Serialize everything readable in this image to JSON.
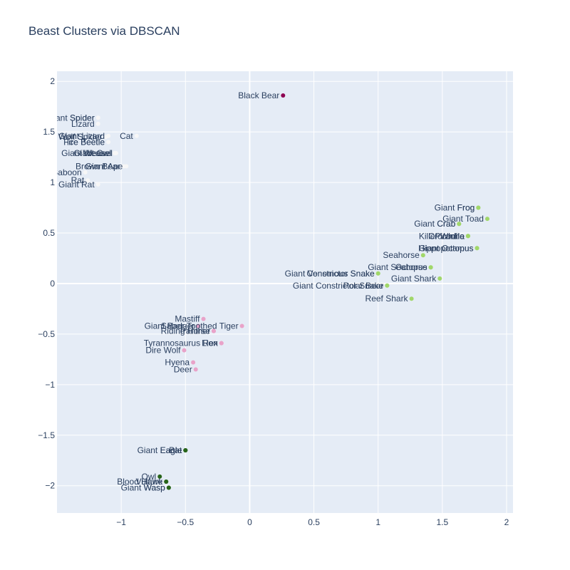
{
  "chart_data": {
    "type": "scatter",
    "title": "Beast Clusters via DBSCAN",
    "xlabel": "",
    "ylabel": "",
    "xlim": [
      -1.5,
      2.05
    ],
    "ylim": [
      -2.27,
      2.1
    ],
    "xticks": [
      -1,
      -0.5,
      0,
      0.5,
      1,
      1.5,
      2
    ],
    "xtick_labels": [
      "−1",
      "−0.5",
      "0",
      "0.5",
      "1",
      "1.5",
      "2"
    ],
    "yticks": [
      -2,
      -1.5,
      -1,
      -0.5,
      0,
      0.5,
      1,
      1.5,
      2
    ],
    "ytick_labels": [
      "−2",
      "−1.5",
      "−1",
      "−0.5",
      "0",
      "0.5",
      "1",
      "1.5",
      "2"
    ],
    "grid": true,
    "legend": "none",
    "background": "#e5ecf6",
    "cluster_colors": {
      "black_bear": "#8e0152",
      "white": "#f7f7f7",
      "green": "#a1d76a",
      "pink": "#e9a3c9",
      "darkgreen": "#276419"
    },
    "points": [
      {
        "label": "Black Bear",
        "x": 0.26,
        "y": 1.86,
        "cluster": "black_bear"
      },
      {
        "label": "Giant Spider",
        "x": -1.18,
        "y": 1.64,
        "cluster": "white"
      },
      {
        "label": "Spider",
        "x": -1.18,
        "y": 1.64,
        "cluster": "white"
      },
      {
        "label": "Lizard",
        "x": -1.18,
        "y": 1.58,
        "cluster": "white"
      },
      {
        "label": "Cat",
        "x": -0.88,
        "y": 1.46,
        "cluster": "white"
      },
      {
        "label": "Giant Lizard",
        "x": -1.1,
        "y": 1.46,
        "cluster": "white"
      },
      {
        "label": "Wolf Spider",
        "x": -1.12,
        "y": 1.45,
        "cluster": "white"
      },
      {
        "label": "Ice Beetle",
        "x": -1.1,
        "y": 1.4,
        "cluster": "white"
      },
      {
        "label": "Fire Beetle",
        "x": -1.1,
        "y": 1.4,
        "cluster": "white"
      },
      {
        "label": "Giant Weasel",
        "x": -1.04,
        "y": 1.29,
        "cluster": "white"
      },
      {
        "label": "Weasel",
        "x": -1.05,
        "y": 1.29,
        "cluster": "white"
      },
      {
        "label": "Giant Owl",
        "x": -1.05,
        "y": 1.29,
        "cluster": "white"
      },
      {
        "label": "Giant Ape",
        "x": -0.96,
        "y": 1.16,
        "cluster": "white"
      },
      {
        "label": "Brown Bear",
        "x": -0.98,
        "y": 1.16,
        "cluster": "white"
      },
      {
        "label": "Baboon",
        "x": -1.28,
        "y": 1.1,
        "cluster": "white"
      },
      {
        "label": "Rat",
        "x": -1.26,
        "y": 1.02,
        "cluster": "white"
      },
      {
        "label": "Giant Rat",
        "x": -1.18,
        "y": 0.98,
        "cluster": "white"
      },
      {
        "label": "Giant Frog",
        "x": 1.78,
        "y": 0.75,
        "cluster": "green"
      },
      {
        "label": "Frog",
        "x": 1.78,
        "y": 0.75,
        "cluster": "green"
      },
      {
        "label": "Giant Toad",
        "x": 1.85,
        "y": 0.64,
        "cluster": "green"
      },
      {
        "label": "Giant Crab",
        "x": 1.63,
        "y": 0.59,
        "cluster": "green"
      },
      {
        "label": "Crab",
        "x": 1.63,
        "y": 0.59,
        "cluster": "green"
      },
      {
        "label": "Killer Whale",
        "x": 1.7,
        "y": 0.47,
        "cluster": "green"
      },
      {
        "label": "Piranha",
        "x": 1.7,
        "y": 0.47,
        "cluster": "green"
      },
      {
        "label": "Crocodile",
        "x": 1.7,
        "y": 0.47,
        "cluster": "green"
      },
      {
        "label": "Hippopotamus",
        "x": 1.77,
        "y": 0.35,
        "cluster": "green"
      },
      {
        "label": "Giant Octopus",
        "x": 1.77,
        "y": 0.35,
        "cluster": "green"
      },
      {
        "label": "Seahorse",
        "x": 1.35,
        "y": 0.28,
        "cluster": "green"
      },
      {
        "label": "Giant Seahorse",
        "x": 1.41,
        "y": 0.16,
        "cluster": "green"
      },
      {
        "label": "Octopus",
        "x": 1.41,
        "y": 0.16,
        "cluster": "green"
      },
      {
        "label": "Giant Venomous Snake",
        "x": 1.0,
        "y": 0.1,
        "cluster": "green"
      },
      {
        "label": "Constrictor Snake",
        "x": 1.0,
        "y": 0.1,
        "cluster": "green"
      },
      {
        "label": "Giant Shark",
        "x": 1.48,
        "y": 0.05,
        "cluster": "green"
      },
      {
        "label": "Giant Constrictor Snake",
        "x": 1.07,
        "y": -0.02,
        "cluster": "green"
      },
      {
        "label": "Polar Bear",
        "x": 1.07,
        "y": -0.02,
        "cluster": "green"
      },
      {
        "label": "Reef Shark",
        "x": 1.26,
        "y": -0.15,
        "cluster": "green"
      },
      {
        "label": "Mastiff",
        "x": -0.36,
        "y": -0.35,
        "cluster": "pink"
      },
      {
        "label": "Giant Badger",
        "x": -0.4,
        "y": -0.42,
        "cluster": "pink"
      },
      {
        "label": "Saber-Toothed Tiger",
        "x": -0.06,
        "y": -0.42,
        "cluster": "pink"
      },
      {
        "label": "Panther",
        "x": -0.28,
        "y": -0.47,
        "cluster": "pink"
      },
      {
        "label": "Riding Horse",
        "x": -0.28,
        "y": -0.47,
        "cluster": "pink"
      },
      {
        "label": "Tyrannosaurus Rex",
        "x": -0.22,
        "y": -0.59,
        "cluster": "pink"
      },
      {
        "label": "Lion",
        "x": -0.22,
        "y": -0.59,
        "cluster": "pink"
      },
      {
        "label": "Dire Wolf",
        "x": -0.51,
        "y": -0.66,
        "cluster": "pink"
      },
      {
        "label": "Hyena",
        "x": -0.44,
        "y": -0.78,
        "cluster": "pink"
      },
      {
        "label": "Deer",
        "x": -0.42,
        "y": -0.85,
        "cluster": "pink"
      },
      {
        "label": "Giant Eagle",
        "x": -0.5,
        "y": -1.65,
        "cluster": "darkgreen"
      },
      {
        "label": "Eagle",
        "x": -0.5,
        "y": -1.65,
        "cluster": "darkgreen"
      },
      {
        "label": "Bat",
        "x": -0.5,
        "y": -1.65,
        "cluster": "darkgreen"
      },
      {
        "label": "Owl",
        "x": -0.7,
        "y": -1.91,
        "cluster": "darkgreen"
      },
      {
        "label": "Blood Hawk",
        "x": -0.65,
        "y": -1.96,
        "cluster": "darkgreen"
      },
      {
        "label": "Vulture",
        "x": -0.65,
        "y": -1.96,
        "cluster": "darkgreen"
      },
      {
        "label": "Giant Wasp",
        "x": -0.63,
        "y": -2.02,
        "cluster": "darkgreen"
      },
      {
        "label": "Wasp",
        "x": -0.63,
        "y": -2.02,
        "cluster": "darkgreen"
      }
    ]
  }
}
